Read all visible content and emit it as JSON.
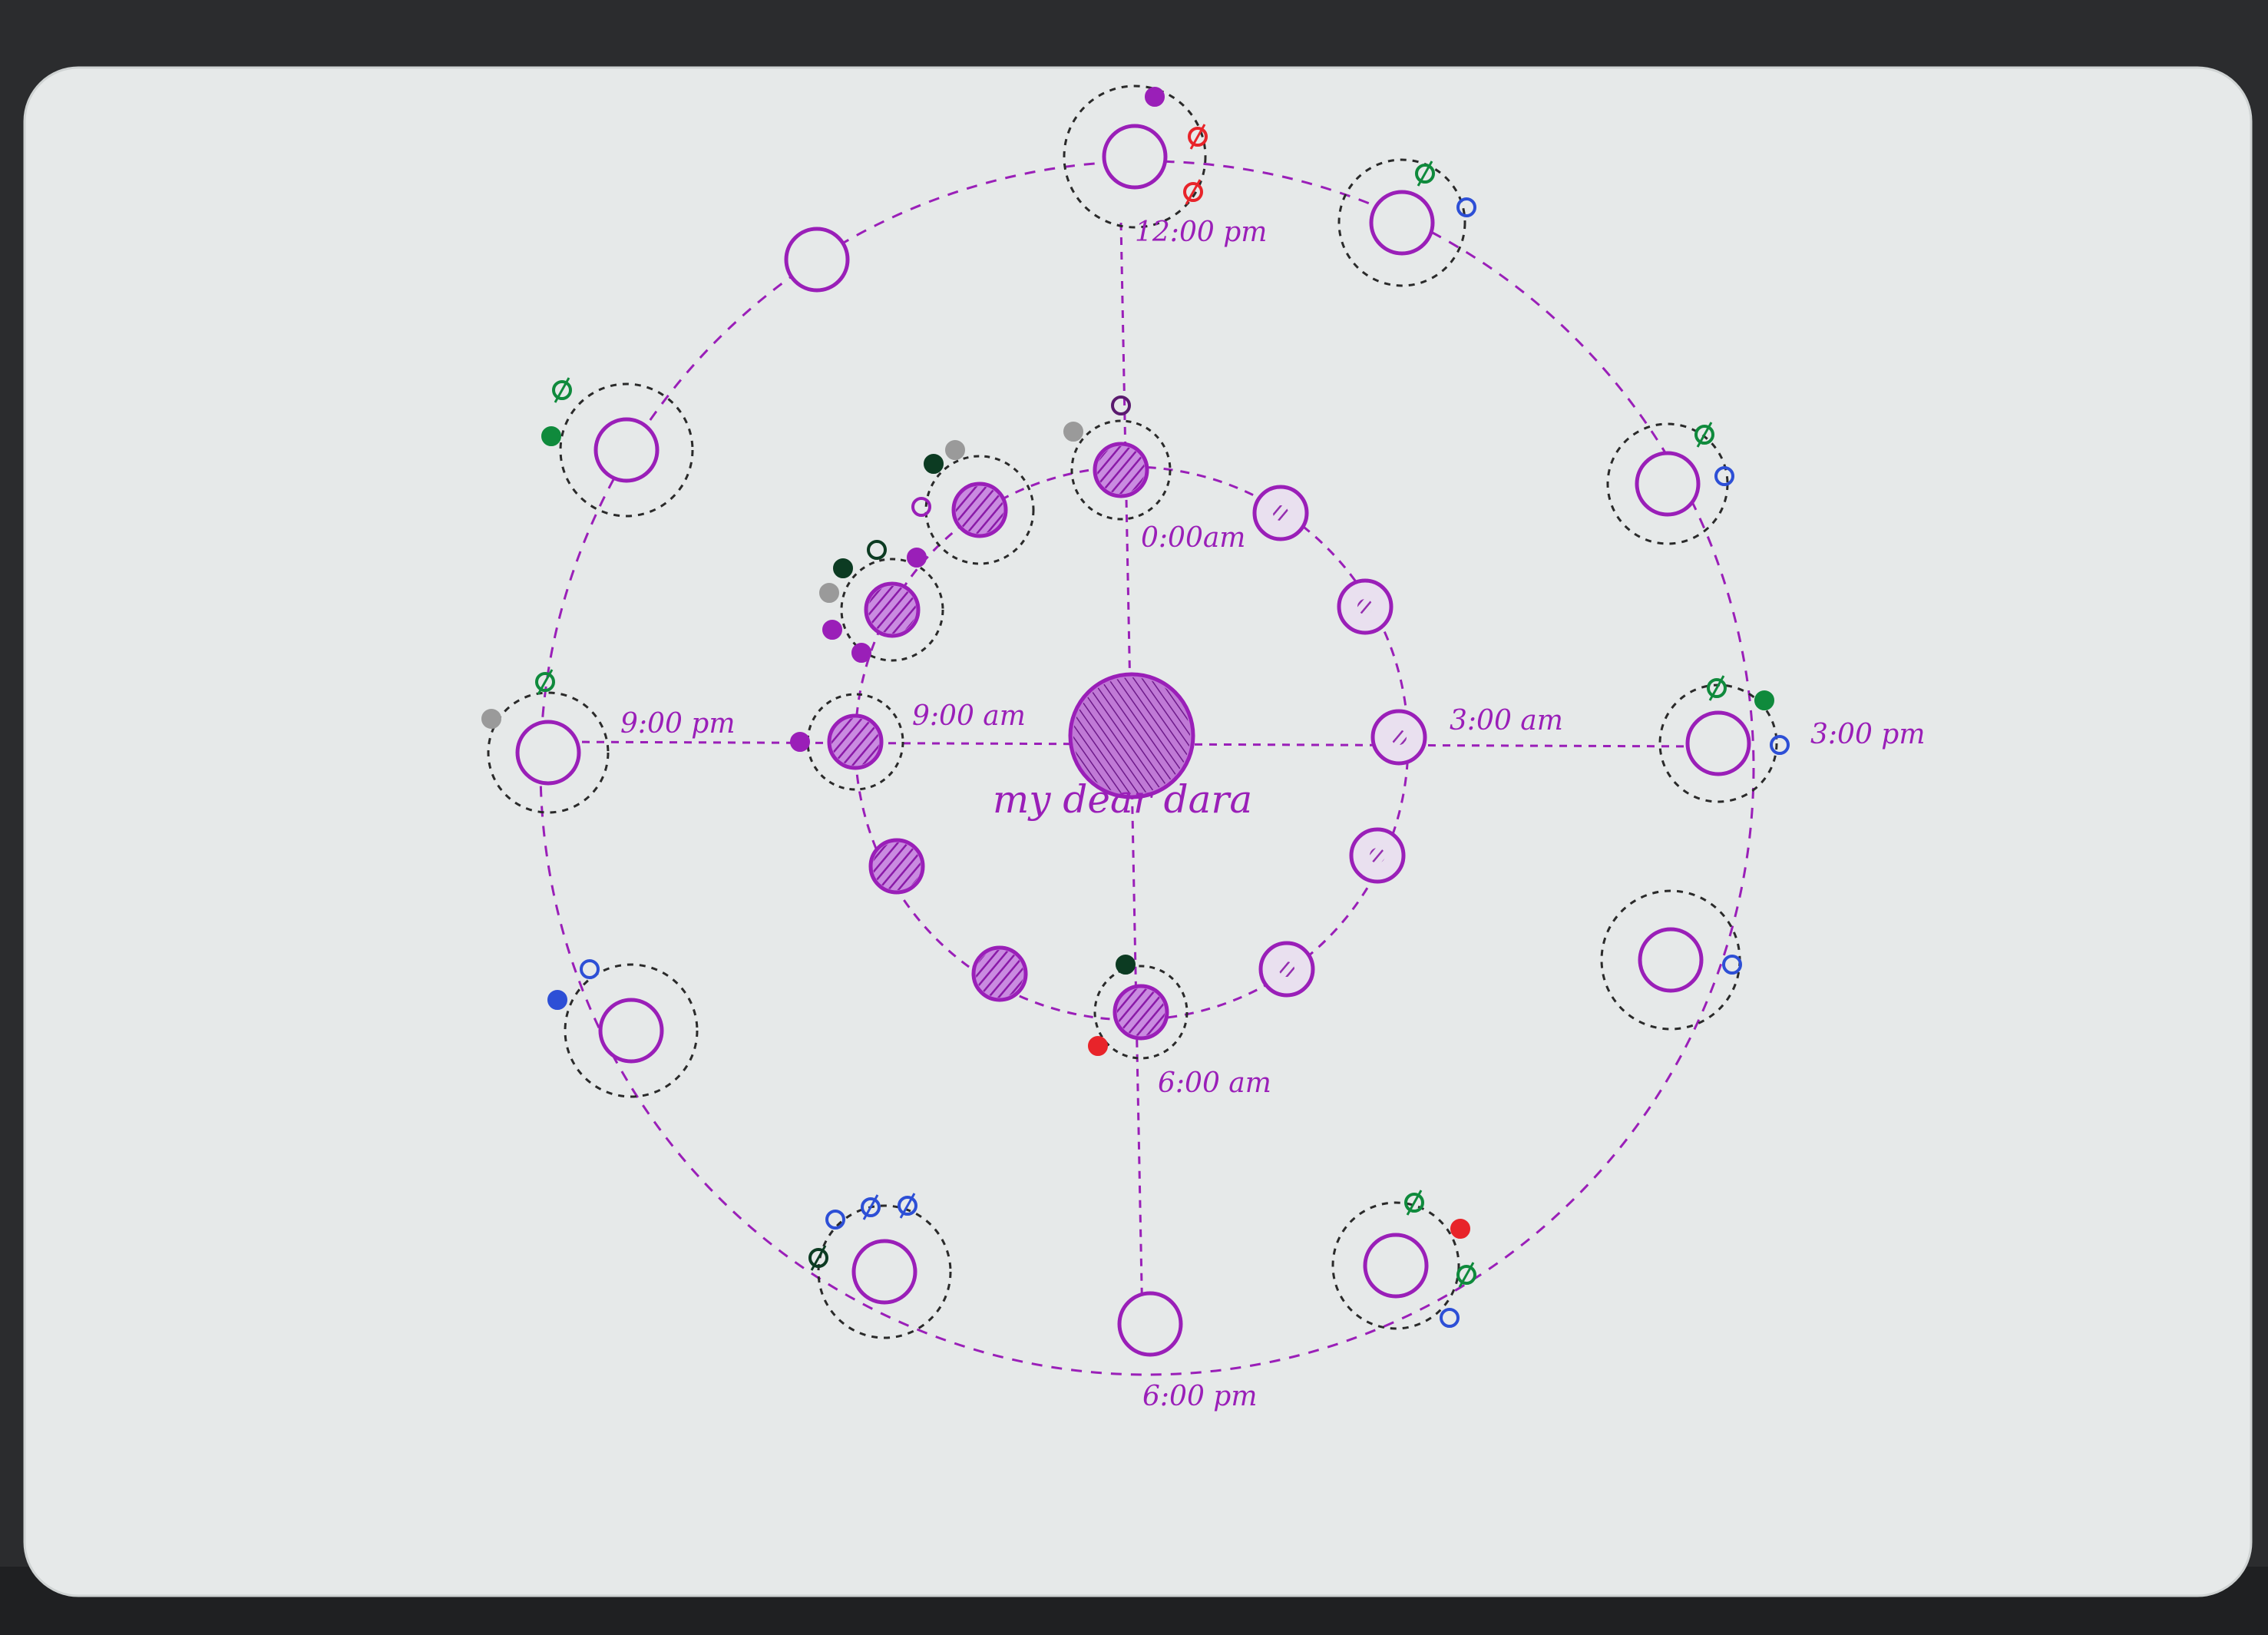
{
  "photo": {
    "subject": "hand-drawn diagram on a white card",
    "ink_color": "#9a1fb8",
    "dark_ink_color": "#5a1a6e",
    "card_color": "#e7eaea",
    "background_color": "#2b2c2e",
    "accent_colors": {
      "red": "#e8242a",
      "green": "#0f8a3c",
      "blue": "#2d4fd6",
      "grey": "#9a9a9a",
      "dark_green": "#0c3b22"
    }
  },
  "labels": {
    "center": "my dear dara",
    "inner_top": "0:00am",
    "inner_right": "3:00 am",
    "inner_bottom": "6:00 am",
    "inner_left": "9:00 am",
    "outer_top": "12:00 pm",
    "outer_right": "3:00 pm",
    "outer_bottom": "6:00 pm",
    "outer_left": "9:00 pm"
  },
  "icons": {
    "center": "filled-hatched-circle-icon",
    "inner_orbit_node": "hatched-circle-icon",
    "outer_orbit_node": "hollow-circle-icon",
    "companion_marker": "small-dot-icon"
  }
}
